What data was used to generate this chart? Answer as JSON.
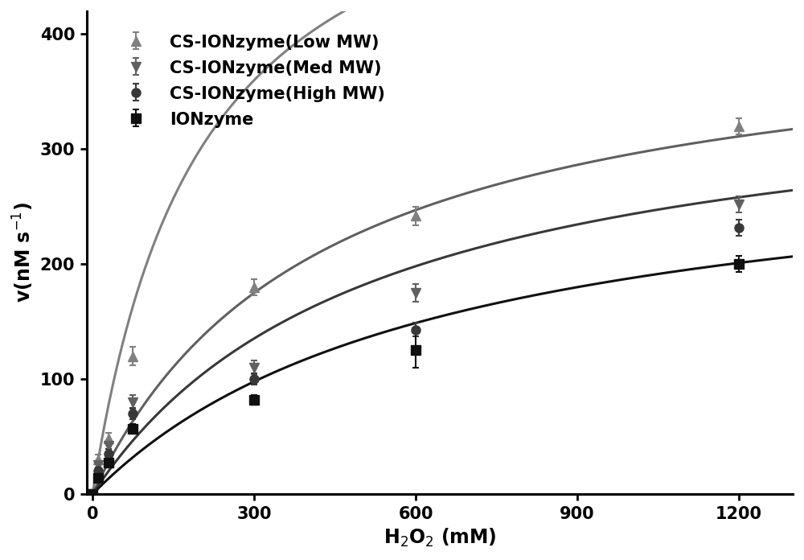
{
  "series": [
    {
      "label": "CS-IONzyme(Low MW)",
      "color": "#808080",
      "marker": "^",
      "markersize": 8,
      "linewidth": 2.2,
      "x": [
        0,
        10,
        30,
        75,
        300,
        600,
        1200
      ],
      "y": [
        0,
        30,
        48,
        120,
        180,
        242,
        320
      ],
      "yerr": [
        0,
        4,
        5,
        8,
        7,
        8,
        7
      ],
      "vmax": 600,
      "km": 200
    },
    {
      "label": "CS-IONzyme(Med MW)",
      "color": "#606060",
      "marker": "v",
      "markersize": 8,
      "linewidth": 2.2,
      "x": [
        0,
        10,
        30,
        75,
        300,
        600,
        1200
      ],
      "y": [
        0,
        25,
        42,
        80,
        110,
        175,
        252
      ],
      "yerr": [
        0,
        4,
        5,
        6,
        6,
        8,
        7
      ],
      "vmax": 420,
      "km": 420
    },
    {
      "label": "CS-IONzyme(High MW)",
      "color": "#383838",
      "marker": "o",
      "markersize": 8,
      "linewidth": 2.2,
      "x": [
        0,
        10,
        30,
        75,
        300,
        600,
        1200
      ],
      "y": [
        0,
        20,
        35,
        70,
        100,
        143,
        232
      ],
      "yerr": [
        0,
        3,
        4,
        5,
        5,
        6,
        7
      ],
      "vmax": 370,
      "km": 520
    },
    {
      "label": "IONzyme",
      "color": "#101010",
      "marker": "s",
      "markersize": 8,
      "linewidth": 2.2,
      "x": [
        0,
        10,
        30,
        75,
        300,
        600,
        1200
      ],
      "y": [
        0,
        14,
        27,
        57,
        82,
        125,
        200
      ],
      "yerr": [
        0,
        3,
        3,
        4,
        4,
        15,
        7
      ],
      "vmax": 310,
      "km": 650
    }
  ],
  "xlabel": "H$_2$O$_2$ (mM)",
  "ylabel": "v(nM s$^{-1}$)",
  "xlim": [
    -10,
    1300
  ],
  "ylim": [
    0,
    420
  ],
  "xticks": [
    0,
    300,
    600,
    900,
    1200
  ],
  "yticks": [
    0,
    100,
    200,
    300,
    400
  ],
  "background_color": "#ffffff",
  "legend_fontsize": 15,
  "axis_fontsize": 17,
  "tick_fontsize": 15
}
